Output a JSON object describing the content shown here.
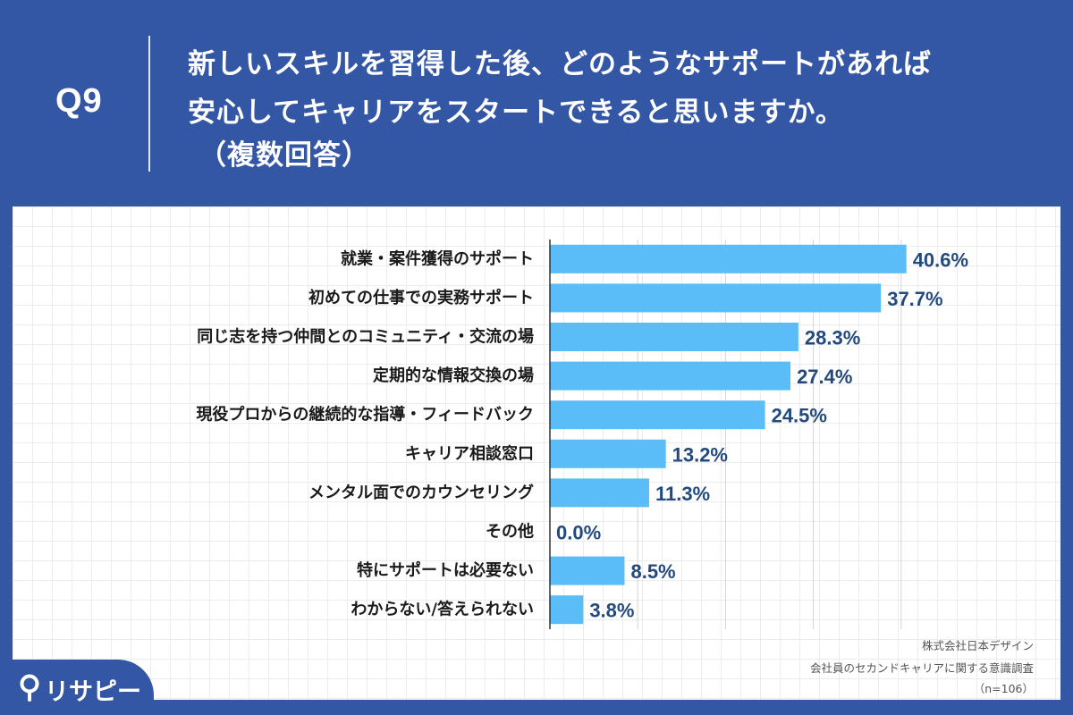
{
  "header": {
    "question_label": "Q9",
    "title_line1": "新しいスキルを習得した後、どのようなサポートがあれば",
    "title_line2": "安心してキャリアをスタートできると思いますか。",
    "title_line3": "（複数回答）"
  },
  "colors": {
    "background": "#3457a5",
    "bar": "#5bbdf7",
    "value_text": "#234a7e",
    "label_text": "#1a1a1a",
    "axis": "#333333",
    "gridline": "#d4d4d4"
  },
  "chart_data": {
    "type": "bar",
    "orientation": "horizontal",
    "unit": "%",
    "xlim": [
      0,
      48
    ],
    "gridlines_at": [
      0,
      10,
      20,
      30,
      40
    ],
    "categories": [
      "就業・案件獲得のサポート",
      "初めての仕事での実務サポート",
      "同じ志を持つ仲間とのコミュニティ・交流の場",
      "定期的な情報交換の場",
      "現役プロからの継続的な指導・フィードバック",
      "キャリア相談窓口",
      "メンタル面でのカウンセリング",
      "その他",
      "特にサポートは必要ない",
      "わからない/答えられない"
    ],
    "values": [
      40.6,
      37.7,
      28.3,
      27.4,
      24.5,
      13.2,
      11.3,
      0.0,
      8.5,
      3.8
    ],
    "value_labels": [
      "40.6%",
      "37.7%",
      "28.3%",
      "27.4%",
      "24.5%",
      "13.2%",
      "11.3%",
      "0.0%",
      "8.5%",
      "3.8%"
    ]
  },
  "footer": {
    "company": "株式会社日本デザイン",
    "survey": "会社員のセカンドキャリアに関する意識調査",
    "sample": "（n=106）"
  },
  "logo": {
    "text": "リサピー",
    "icon": "pin-icon"
  }
}
